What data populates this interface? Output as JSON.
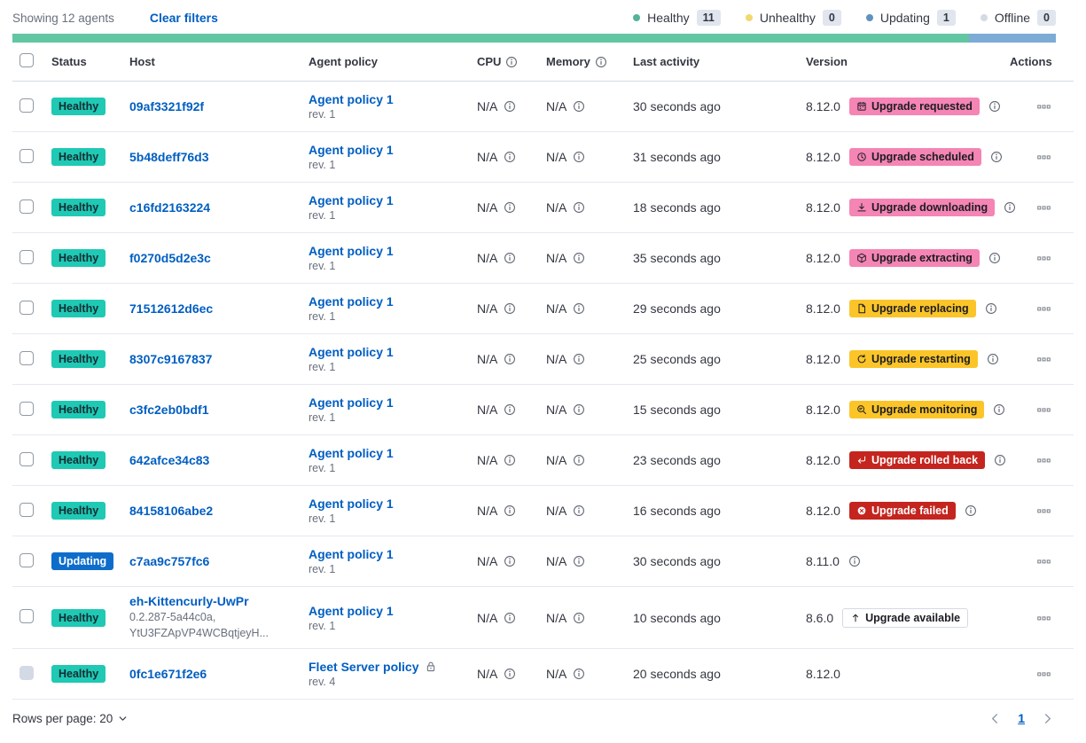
{
  "colors": {
    "text": "#343741",
    "muted": "#69707D",
    "link": "#005EC2",
    "healthy_badge": "#1FC9B4",
    "updating_badge": "#0E6DCB",
    "pink_badge": "#F485B4",
    "warning_badge": "#FBC529",
    "danger_badge": "#C4251E",
    "count_badge_bg": "#E0E5EE",
    "row_border": "#E4E8F0"
  },
  "toolbar": {
    "showing_text": "Showing 12 agents",
    "clear_filters_label": "Clear filters",
    "legend": [
      {
        "label": "Healthy",
        "count": "11",
        "color": "#54B399"
      },
      {
        "label": "Unhealthy",
        "count": "0",
        "color": "#F1D86F"
      },
      {
        "label": "Updating",
        "count": "1",
        "color": "#6092C0"
      },
      {
        "label": "Offline",
        "count": "0",
        "color": "#D3DAE6"
      }
    ]
  },
  "status_bar": {
    "segments": [
      {
        "status": "healthy",
        "color": "#62C6A2",
        "fraction": 0.9167
      },
      {
        "status": "updating",
        "color": "#7CABD6",
        "fraction": 0.0833
      }
    ]
  },
  "table": {
    "headers": [
      {
        "label": "Status"
      },
      {
        "label": "Host"
      },
      {
        "label": "Agent policy"
      },
      {
        "label": "CPU",
        "info": true
      },
      {
        "label": "Memory",
        "info": true
      },
      {
        "label": "Last activity"
      },
      {
        "label": "Version"
      },
      {
        "label": "Actions"
      }
    ],
    "rows": [
      {
        "status": {
          "label": "Healthy",
          "variant": "healthy"
        },
        "host": {
          "name": "09af3321f92f",
          "meta": []
        },
        "policy": {
          "name": "Agent policy 1",
          "revision": "rev. 1",
          "locked": false
        },
        "cpu": "N/A",
        "memory": "N/A",
        "last_activity": "30 seconds ago",
        "version": "8.12.0",
        "version_info": false,
        "upgrade": {
          "label": "Upgrade requested",
          "variant": "pink",
          "icon": "calendar"
        },
        "badge_info": true,
        "checkbox_disabled": false
      },
      {
        "status": {
          "label": "Healthy",
          "variant": "healthy"
        },
        "host": {
          "name": "5b48deff76d3",
          "meta": []
        },
        "policy": {
          "name": "Agent policy 1",
          "revision": "rev. 1",
          "locked": false
        },
        "cpu": "N/A",
        "memory": "N/A",
        "last_activity": "31 seconds ago",
        "version": "8.12.0",
        "version_info": false,
        "upgrade": {
          "label": "Upgrade scheduled",
          "variant": "pink",
          "icon": "clock"
        },
        "badge_info": true,
        "checkbox_disabled": false
      },
      {
        "status": {
          "label": "Healthy",
          "variant": "healthy"
        },
        "host": {
          "name": "c16fd2163224",
          "meta": []
        },
        "policy": {
          "name": "Agent policy 1",
          "revision": "rev. 1",
          "locked": false
        },
        "cpu": "N/A",
        "memory": "N/A",
        "last_activity": "18 seconds ago",
        "version": "8.12.0",
        "version_info": false,
        "upgrade": {
          "label": "Upgrade downloading",
          "variant": "pink",
          "icon": "download"
        },
        "badge_info": true,
        "checkbox_disabled": false
      },
      {
        "status": {
          "label": "Healthy",
          "variant": "healthy"
        },
        "host": {
          "name": "f0270d5d2e3c",
          "meta": []
        },
        "policy": {
          "name": "Agent policy 1",
          "revision": "rev. 1",
          "locked": false
        },
        "cpu": "N/A",
        "memory": "N/A",
        "last_activity": "35 seconds ago",
        "version": "8.12.0",
        "version_info": false,
        "upgrade": {
          "label": "Upgrade extracting",
          "variant": "pink",
          "icon": "package"
        },
        "badge_info": true,
        "checkbox_disabled": false
      },
      {
        "status": {
          "label": "Healthy",
          "variant": "healthy"
        },
        "host": {
          "name": "71512612d6ec",
          "meta": []
        },
        "policy": {
          "name": "Agent policy 1",
          "revision": "rev. 1",
          "locked": false
        },
        "cpu": "N/A",
        "memory": "N/A",
        "last_activity": "29 seconds ago",
        "version": "8.12.0",
        "version_info": false,
        "upgrade": {
          "label": "Upgrade replacing",
          "variant": "warning",
          "icon": "document"
        },
        "badge_info": true,
        "checkbox_disabled": false
      },
      {
        "status": {
          "label": "Healthy",
          "variant": "healthy"
        },
        "host": {
          "name": "8307c9167837",
          "meta": []
        },
        "policy": {
          "name": "Agent policy 1",
          "revision": "rev. 1",
          "locked": false
        },
        "cpu": "N/A",
        "memory": "N/A",
        "last_activity": "25 seconds ago",
        "version": "8.12.0",
        "version_info": false,
        "upgrade": {
          "label": "Upgrade restarting",
          "variant": "warning",
          "icon": "refresh"
        },
        "badge_info": true,
        "checkbox_disabled": false
      },
      {
        "status": {
          "label": "Healthy",
          "variant": "healthy"
        },
        "host": {
          "name": "c3fc2eb0bdf1",
          "meta": []
        },
        "policy": {
          "name": "Agent policy 1",
          "revision": "rev. 1",
          "locked": false
        },
        "cpu": "N/A",
        "memory": "N/A",
        "last_activity": "15 seconds ago",
        "version": "8.12.0",
        "version_info": false,
        "upgrade": {
          "label": "Upgrade monitoring",
          "variant": "warning",
          "icon": "inspect"
        },
        "badge_info": true,
        "checkbox_disabled": false
      },
      {
        "status": {
          "label": "Healthy",
          "variant": "healthy"
        },
        "host": {
          "name": "642afce34c83",
          "meta": []
        },
        "policy": {
          "name": "Agent policy 1",
          "revision": "rev. 1",
          "locked": false
        },
        "cpu": "N/A",
        "memory": "N/A",
        "last_activity": "23 seconds ago",
        "version": "8.12.0",
        "version_info": false,
        "upgrade": {
          "label": "Upgrade rolled back",
          "variant": "danger",
          "icon": "return"
        },
        "badge_info": true,
        "checkbox_disabled": false
      },
      {
        "status": {
          "label": "Healthy",
          "variant": "healthy"
        },
        "host": {
          "name": "84158106abe2",
          "meta": []
        },
        "policy": {
          "name": "Agent policy 1",
          "revision": "rev. 1",
          "locked": false
        },
        "cpu": "N/A",
        "memory": "N/A",
        "last_activity": "16 seconds ago",
        "version": "8.12.0",
        "version_info": false,
        "upgrade": {
          "label": "Upgrade failed",
          "variant": "danger",
          "icon": "error"
        },
        "badge_info": true,
        "checkbox_disabled": false
      },
      {
        "status": {
          "label": "Updating",
          "variant": "updating"
        },
        "host": {
          "name": "c7aa9c757fc6",
          "meta": []
        },
        "policy": {
          "name": "Agent policy 1",
          "revision": "rev. 1",
          "locked": false
        },
        "cpu": "N/A",
        "memory": "N/A",
        "last_activity": "30 seconds ago",
        "version": "8.11.0",
        "version_info": true,
        "upgrade": null,
        "badge_info": false,
        "checkbox_disabled": false
      },
      {
        "status": {
          "label": "Healthy",
          "variant": "healthy"
        },
        "host": {
          "name": "eh-Kittencurly-UwPr",
          "meta": [
            "0.2.287-5a44c0a,",
            "YtU3FZApVP4WCBqtjeyH..."
          ]
        },
        "policy": {
          "name": "Agent policy 1",
          "revision": "rev. 1",
          "locked": false
        },
        "cpu": "N/A",
        "memory": "N/A",
        "last_activity": "10 seconds ago",
        "version": "8.6.0",
        "version_info": false,
        "upgrade": {
          "label": "Upgrade available",
          "variant": "hollow",
          "icon": "arrow-up"
        },
        "badge_info": false,
        "checkbox_disabled": false
      },
      {
        "status": {
          "label": "Healthy",
          "variant": "healthy"
        },
        "host": {
          "name": "0fc1e671f2e6",
          "meta": []
        },
        "policy": {
          "name": "Fleet Server policy",
          "revision": "rev. 4",
          "locked": true
        },
        "cpu": "N/A",
        "memory": "N/A",
        "last_activity": "20 seconds ago",
        "version": "8.12.0",
        "version_info": false,
        "upgrade": null,
        "badge_info": false,
        "checkbox_disabled": true
      }
    ]
  },
  "footer": {
    "rows_per_page_label": "Rows per page: 20",
    "current_page": "1"
  }
}
